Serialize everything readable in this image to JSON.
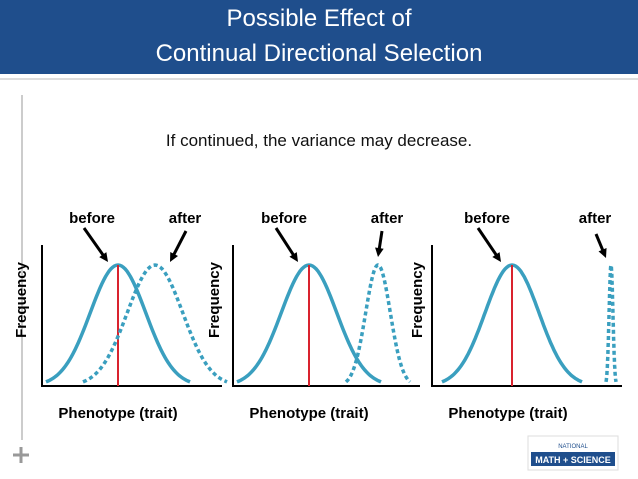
{
  "header": {
    "title_line1": "Possible Effect of",
    "title_line2": "Continual Directional Selection"
  },
  "subtitle": "If continued, the variance may decrease.",
  "panels": [
    {
      "before": "before",
      "after": "after",
      "y_label": "Frequency",
      "x_label": "Phenotype (trait)"
    },
    {
      "before": "before",
      "after": "after",
      "y_label": "Frequency",
      "x_label": "Phenotype (trait)"
    },
    {
      "before": "before",
      "after": "after",
      "y_label": "Frequency",
      "x_label": "Phenotype (trait)"
    }
  ],
  "logo": {
    "line1": "NATIONAL",
    "line2": "MATH + SCIENCE"
  }
}
